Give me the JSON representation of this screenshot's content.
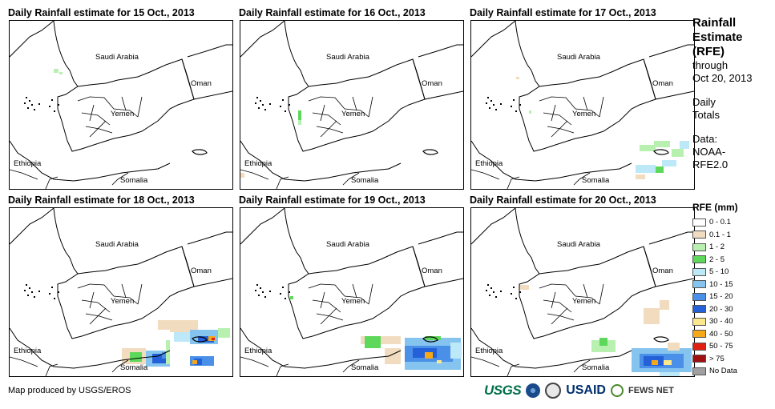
{
  "panels": [
    {
      "title": "Daily Rainfall estimate for 15 Oct., 2013",
      "day": 15
    },
    {
      "title": "Daily Rainfall estimate for 16 Oct., 2013",
      "day": 16
    },
    {
      "title": "Daily Rainfall estimate for 17 Oct., 2013",
      "day": 17
    },
    {
      "title": "Daily Rainfall estimate for 18 Oct., 2013",
      "day": 18
    },
    {
      "title": "Daily Rainfall estimate for 19 Oct., 2013",
      "day": 19
    },
    {
      "title": "Daily Rainfall estimate for 20 Oct., 2013",
      "day": 20
    }
  ],
  "country_labels": {
    "saudi": "Saudi Arabia",
    "oman": "Oman",
    "yemen": "Yemen",
    "ethiopia": "Ethiopia",
    "somalia": "Somalia"
  },
  "sidebar": {
    "title_line1": "Rainfall",
    "title_line2": "Estimate",
    "title_line3": "(RFE)",
    "through": "through",
    "date": "Oct 20, 2013",
    "daily1": "Daily",
    "daily2": "Totals",
    "data1": "Data:",
    "data2": "NOAA-",
    "data3": "RFE2.0"
  },
  "legend": {
    "title": "RFE (mm)",
    "items": [
      {
        "label": "0 - 0.1",
        "color": "#ffffff"
      },
      {
        "label": "0.1 - 1",
        "color": "#f2dcc0"
      },
      {
        "label": "1 - 2",
        "color": "#b8f0b0"
      },
      {
        "label": "2 - 5",
        "color": "#5ed85a"
      },
      {
        "label": "5 - 10",
        "color": "#bde8f8"
      },
      {
        "label": "10 - 15",
        "color": "#86c4f0"
      },
      {
        "label": "15 - 20",
        "color": "#4a8fe8"
      },
      {
        "label": "20 - 30",
        "color": "#2460d8"
      },
      {
        "label": "30 - 40",
        "color": "#fbe88a"
      },
      {
        "label": "40 - 50",
        "color": "#f5a818"
      },
      {
        "label": "50 - 75",
        "color": "#e02010"
      },
      {
        "label": "> 75",
        "color": "#a01010"
      },
      {
        "label": "No Data",
        "color": "#a0a0a0"
      }
    ]
  },
  "credit": "Map produced by USGS/EROS",
  "logos": {
    "usgs": "USGS",
    "usaid": "USAID",
    "fews": "FEWS NET"
  }
}
